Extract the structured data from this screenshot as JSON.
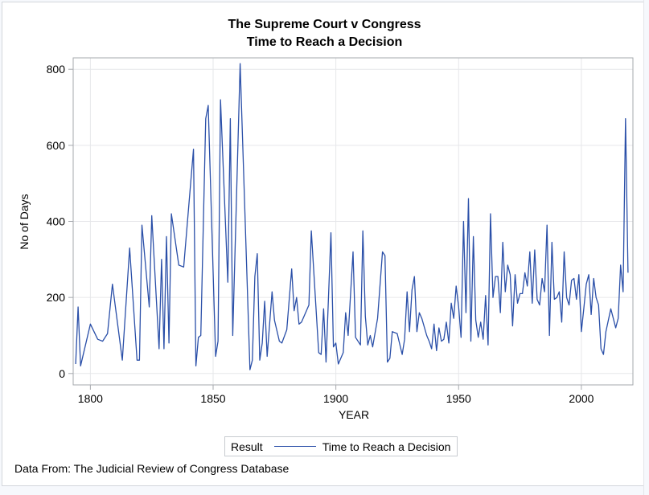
{
  "chart_data": {
    "type": "line",
    "title": "The Supreme Court v Congress",
    "subtitle": "Time to Reach a Decision",
    "xlabel": "YEAR",
    "ylabel": "No of Days",
    "xlim": [
      1793,
      2021
    ],
    "ylim": [
      -30,
      830
    ],
    "xticks": [
      1800,
      1850,
      1900,
      1950,
      2000
    ],
    "yticks": [
      0,
      200,
      400,
      600,
      800
    ],
    "grid": true,
    "legend": {
      "placement": "bottom-center",
      "group_label": "Result",
      "entries": [
        "Time to Reach a Decision"
      ]
    },
    "line_color": "#2a4fa8",
    "series": [
      {
        "name": "Time to Reach a Decision",
        "x": [
          1794,
          1795,
          1796,
          1800,
          1803,
          1805,
          1807,
          1809,
          1813,
          1816,
          1819,
          1820,
          1821,
          1824,
          1825,
          1828,
          1829,
          1830,
          1831,
          1832,
          1833,
          1836,
          1838,
          1842,
          1843,
          1844,
          1845,
          1847,
          1848,
          1851,
          1852,
          1853,
          1856,
          1857,
          1858,
          1861,
          1865,
          1866,
          1867,
          1868,
          1869,
          1870,
          1871,
          1872,
          1874,
          1875,
          1877,
          1878,
          1880,
          1882,
          1883,
          1884,
          1885,
          1886,
          1889,
          1890,
          1893,
          1894,
          1895,
          1896,
          1898,
          1899,
          1900,
          1901,
          1903,
          1904,
          1905,
          1907,
          1908,
          1910,
          1911,
          1912,
          1913,
          1914,
          1915,
          1917,
          1919,
          1920,
          1921,
          1922,
          1923,
          1925,
          1927,
          1928,
          1929,
          1930,
          1931,
          1932,
          1933,
          1934,
          1935,
          1937,
          1938,
          1939,
          1940,
          1941,
          1942,
          1943,
          1944,
          1945,
          1946,
          1947,
          1948,
          1949,
          1950,
          1951,
          1952,
          1953,
          1954,
          1955,
          1956,
          1957,
          1958,
          1959,
          1960,
          1961,
          1962,
          1963,
          1964,
          1965,
          1966,
          1967,
          1968,
          1969,
          1970,
          1971,
          1972,
          1973,
          1974,
          1975,
          1976,
          1977,
          1978,
          1979,
          1980,
          1981,
          1982,
          1983,
          1984,
          1985,
          1986,
          1987,
          1988,
          1989,
          1990,
          1991,
          1992,
          1993,
          1994,
          1995,
          1996,
          1997,
          1998,
          1999,
          2000,
          2001,
          2002,
          2003,
          2004,
          2005,
          2006,
          2007,
          2008,
          2009,
          2010,
          2012,
          2013,
          2014,
          2015,
          2016,
          2017,
          2018,
          2019
        ],
        "values": [
          25,
          175,
          20,
          130,
          90,
          85,
          105,
          235,
          35,
          330,
          35,
          35,
          390,
          175,
          415,
          65,
          300,
          65,
          360,
          80,
          420,
          285,
          280,
          590,
          20,
          95,
          100,
          670,
          705,
          45,
          85,
          720,
          240,
          670,
          100,
          815,
          10,
          35,
          255,
          315,
          35,
          80,
          190,
          45,
          215,
          140,
          85,
          80,
          115,
          275,
          165,
          200,
          130,
          135,
          180,
          375,
          55,
          50,
          170,
          30,
          370,
          70,
          80,
          25,
          55,
          160,
          100,
          320,
          95,
          75,
          375,
          150,
          75,
          100,
          70,
          145,
          320,
          310,
          30,
          40,
          110,
          105,
          50,
          90,
          215,
          110,
          220,
          255,
          110,
          160,
          145,
          100,
          85,
          65,
          130,
          60,
          120,
          85,
          90,
          135,
          80,
          185,
          145,
          230,
          175,
          95,
          400,
          160,
          460,
          85,
          360,
          140,
          95,
          135,
          90,
          205,
          75,
          420,
          200,
          255,
          255,
          160,
          345,
          215,
          285,
          260,
          125,
          260,
          185,
          210,
          210,
          265,
          230,
          320,
          185,
          325,
          195,
          180,
          250,
          215,
          390,
          100,
          345,
          195,
          200,
          215,
          135,
          320,
          200,
          180,
          245,
          250,
          195,
          260,
          110,
          170,
          235,
          260,
          155,
          250,
          200,
          180,
          65,
          50,
          110,
          170,
          145,
          120,
          145,
          285,
          215,
          670,
          265
        ]
      }
    ]
  },
  "footnote": "Data From: The Judicial Review of Congress Database"
}
